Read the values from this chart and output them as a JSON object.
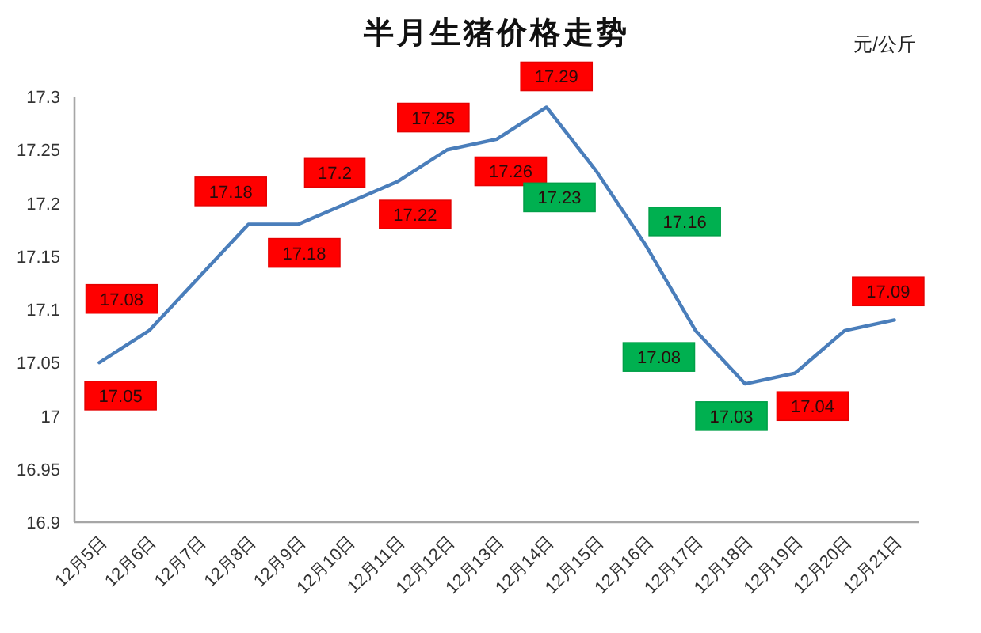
{
  "chart_data": {
    "type": "line",
    "title": "半月生猪价格走势",
    "annotations": [
      "元/公斤"
    ],
    "categories": [
      "12月5日",
      "12月6日",
      "12月7日",
      "12月8日",
      "12月9日",
      "12月10日",
      "12月11日",
      "12月12日",
      "12月13日",
      "12月14日",
      "12月15日",
      "12月16日",
      "12月17日",
      "12月18日",
      "12月19日",
      "12月20日",
      "12月21日"
    ],
    "series": [
      {
        "color": "#4a7ebb",
        "values": [
          17.05,
          17.08,
          17.13,
          17.18,
          17.18,
          17.2,
          17.22,
          17.25,
          17.26,
          17.29,
          17.23,
          17.16,
          17.08,
          17.03,
          17.04,
          17.08,
          17.09
        ],
        "value_labels": [
          "17.05",
          "17.08",
          null,
          "17.18",
          "17.18",
          "17.2",
          "17.22",
          "17.25",
          "17.26",
          "17.29",
          "17.23",
          "17.16",
          "17.08",
          "17.03",
          "17.04",
          null,
          "17.09"
        ]
      }
    ],
    "ylim": [
      16.9,
      17.3
    ],
    "yticks": [
      16.9,
      16.95,
      17,
      17.05,
      17.1,
      17.15,
      17.2,
      17.25,
      17.3
    ]
  }
}
